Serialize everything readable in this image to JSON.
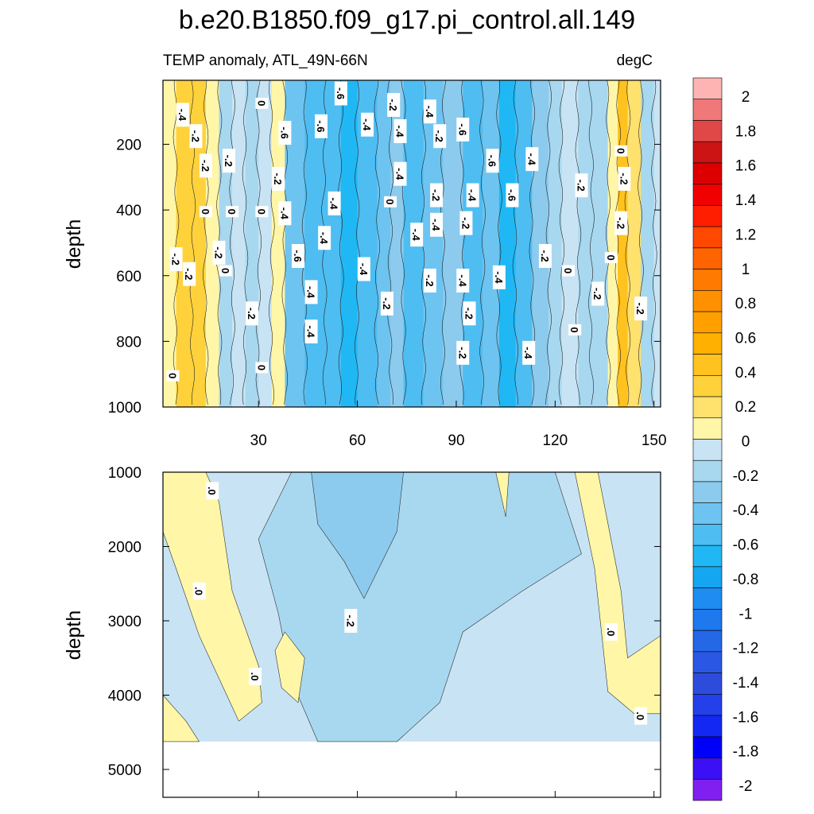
{
  "chart_data": [
    {
      "type": "heatmap",
      "variant": "filled-contour",
      "panel": "upper",
      "title": "b.e20.B1850.f09_g17.pi_control.all.149",
      "subtitle_left": "TEMP anomaly, ATL_49N-66N",
      "subtitle_right": "degC",
      "xlabel": "",
      "ylabel": "depth",
      "xlim": [
        1,
        152
      ],
      "ylim": [
        1000,
        5
      ],
      "xticks": [
        30,
        60,
        90,
        120,
        150
      ],
      "yticks": [
        200,
        400,
        600,
        800,
        1000
      ],
      "columns": [
        {
          "x": 1,
          "v": 0.0
        },
        {
          "x": 5,
          "v": 0.22
        },
        {
          "x": 10,
          "v": 0.28
        },
        {
          "x": 14,
          "v": 0.05
        },
        {
          "x": 18,
          "v": -0.15
        },
        {
          "x": 22,
          "v": -0.1
        },
        {
          "x": 26,
          "v": -0.2
        },
        {
          "x": 30,
          "v": -0.05
        },
        {
          "x": 34,
          "v": 0.05
        },
        {
          "x": 38,
          "v": -0.4
        },
        {
          "x": 44,
          "v": -0.5
        },
        {
          "x": 50,
          "v": -0.45
        },
        {
          "x": 55,
          "v": -0.55
        },
        {
          "x": 60,
          "v": -0.45
        },
        {
          "x": 66,
          "v": -0.38
        },
        {
          "x": 70,
          "v": -0.25
        },
        {
          "x": 74,
          "v": -0.45
        },
        {
          "x": 80,
          "v": -0.4
        },
        {
          "x": 86,
          "v": -0.3
        },
        {
          "x": 92,
          "v": -0.5
        },
        {
          "x": 98,
          "v": -0.4
        },
        {
          "x": 103,
          "v": -0.55
        },
        {
          "x": 108,
          "v": -0.45
        },
        {
          "x": 113,
          "v": -0.3
        },
        {
          "x": 118,
          "v": -0.2
        },
        {
          "x": 122,
          "v": -0.05
        },
        {
          "x": 127,
          "v": -0.15
        },
        {
          "x": 131,
          "v": -0.2
        },
        {
          "x": 136,
          "v": 0.05
        },
        {
          "x": 139,
          "v": 0.3
        },
        {
          "x": 142,
          "v": 0.15
        },
        {
          "x": 146,
          "v": -0.15
        },
        {
          "x": 150,
          "v": -0.1
        },
        {
          "x": 152,
          "v": 0.05
        }
      ],
      "contour_labels": [
        {
          "x": 7,
          "depth": 110,
          "text": "-.4"
        },
        {
          "x": 31,
          "depth": 75,
          "text": "0"
        },
        {
          "x": 55,
          "depth": 45,
          "text": "-.6"
        },
        {
          "x": 71,
          "depth": 80,
          "text": "-.2"
        },
        {
          "x": 82,
          "depth": 100,
          "text": "-.4"
        },
        {
          "x": 11,
          "depth": 175,
          "text": "-.2"
        },
        {
          "x": 38,
          "depth": 165,
          "text": "-.6"
        },
        {
          "x": 49,
          "depth": 145,
          "text": "-.6"
        },
        {
          "x": 63,
          "depth": 140,
          "text": "-.4"
        },
        {
          "x": 73,
          "depth": 160,
          "text": "-.4"
        },
        {
          "x": 85,
          "depth": 175,
          "text": "-.2"
        },
        {
          "x": 92,
          "depth": 155,
          "text": "-.6"
        },
        {
          "x": 14,
          "depth": 265,
          "text": "-.2"
        },
        {
          "x": 21,
          "depth": 250,
          "text": "-.2"
        },
        {
          "x": 36,
          "depth": 305,
          "text": "-.2"
        },
        {
          "x": 73,
          "depth": 290,
          "text": "-.4"
        },
        {
          "x": 101,
          "depth": 250,
          "text": "-.6"
        },
        {
          "x": 113,
          "depth": 245,
          "text": "-.4"
        },
        {
          "x": 140,
          "depth": 220,
          "text": "0"
        },
        {
          "x": 84,
          "depth": 355,
          "text": "-.2"
        },
        {
          "x": 95,
          "depth": 355,
          "text": "-.4"
        },
        {
          "x": 107,
          "depth": 355,
          "text": "-.6"
        },
        {
          "x": 128,
          "depth": 325,
          "text": "-.2"
        },
        {
          "x": 141,
          "depth": 305,
          "text": "-.2"
        },
        {
          "x": 14,
          "depth": 405,
          "text": "0"
        },
        {
          "x": 22,
          "depth": 405,
          "text": "0"
        },
        {
          "x": 31,
          "depth": 405,
          "text": "0"
        },
        {
          "x": 38,
          "depth": 410,
          "text": "-.4"
        },
        {
          "x": 53,
          "depth": 380,
          "text": "-.4"
        },
        {
          "x": 70,
          "depth": 375,
          "text": "0"
        },
        {
          "x": 84,
          "depth": 445,
          "text": "-.4"
        },
        {
          "x": 93,
          "depth": 440,
          "text": "-.2"
        },
        {
          "x": 78,
          "depth": 475,
          "text": "-.4"
        },
        {
          "x": 140,
          "depth": 440,
          "text": "-.2"
        },
        {
          "x": 50,
          "depth": 485,
          "text": "-.4"
        },
        {
          "x": 18,
          "depth": 530,
          "text": "-.2"
        },
        {
          "x": 5,
          "depth": 550,
          "text": "-.2"
        },
        {
          "x": 42,
          "depth": 540,
          "text": "-.6"
        },
        {
          "x": 117,
          "depth": 540,
          "text": "-.2"
        },
        {
          "x": 137,
          "depth": 545,
          "text": "0"
        },
        {
          "x": 20,
          "depth": 585,
          "text": "0"
        },
        {
          "x": 9,
          "depth": 595,
          "text": "-.2"
        },
        {
          "x": 62,
          "depth": 580,
          "text": "-.4"
        },
        {
          "x": 103,
          "depth": 605,
          "text": "-.4"
        },
        {
          "x": 124,
          "depth": 585,
          "text": "0"
        },
        {
          "x": 82,
          "depth": 615,
          "text": "-.2"
        },
        {
          "x": 92,
          "depth": 615,
          "text": "-.4"
        },
        {
          "x": 46,
          "depth": 650,
          "text": "-.4"
        },
        {
          "x": 133,
          "depth": 655,
          "text": "-.2"
        },
        {
          "x": 69,
          "depth": 685,
          "text": "-.2"
        },
        {
          "x": 28,
          "depth": 715,
          "text": "-.2"
        },
        {
          "x": 94,
          "depth": 715,
          "text": "-.2"
        },
        {
          "x": 146,
          "depth": 700,
          "text": "-.2"
        },
        {
          "x": 46,
          "depth": 770,
          "text": "-.4"
        },
        {
          "x": 126,
          "depth": 765,
          "text": "0"
        },
        {
          "x": 92,
          "depth": 835,
          "text": "-.2"
        },
        {
          "x": 112,
          "depth": 835,
          "text": "-.4"
        },
        {
          "x": 4,
          "depth": 905,
          "text": "0"
        },
        {
          "x": 31,
          "depth": 880,
          "text": "0"
        }
      ]
    },
    {
      "type": "heatmap",
      "variant": "filled-contour",
      "panel": "lower",
      "xlabel": "",
      "ylabel": "depth",
      "xlim": [
        1,
        152
      ],
      "ylim": [
        5375,
        1000
      ],
      "yticks": [
        1000,
        2000,
        3000,
        4000,
        5000
      ],
      "xticks": [
        30,
        60,
        90,
        120,
        150
      ],
      "no_data_below_depth": 4625,
      "contour_labels": [
        {
          "x": 16,
          "depth": 1250,
          "text": ".0"
        },
        {
          "x": 12,
          "depth": 2600,
          "text": ".0"
        },
        {
          "x": 58,
          "depth": 3000,
          "text": "-.2"
        },
        {
          "x": 29,
          "depth": 3750,
          "text": ".0"
        },
        {
          "x": 137,
          "depth": 3150,
          "text": ".0"
        },
        {
          "x": 146,
          "depth": 4280,
          "text": ".0"
        }
      ]
    }
  ],
  "colorbar": {
    "labels": [
      "2",
      "1.8",
      "1.6",
      "1.4",
      "1.2",
      "1",
      "0.8",
      "0.6",
      "0.4",
      "0.2",
      "0",
      "-0.2",
      "-0.4",
      "-0.6",
      "-0.8",
      "-1",
      "-1.2",
      "-1.4",
      "-1.6",
      "-1.8",
      "-2"
    ],
    "colors": [
      "#ffb4b4",
      "#f07878",
      "#e04848",
      "#cc1414",
      "#dc0000",
      "#f00000",
      "#ff1e00",
      "#ff4800",
      "#ff6400",
      "#ff7a00",
      "#ff9000",
      "#ffa000",
      "#ffb000",
      "#ffc21e",
      "#ffd23c",
      "#ffe16e",
      "#fff6a8",
      "#c8e4f4",
      "#a8d8f0",
      "#8ccbee",
      "#6ec4f0",
      "#4ebdf2",
      "#20b8f4",
      "#14a6f0",
      "#1e8cf0",
      "#1e78ee",
      "#2468e8",
      "#2a58e4",
      "#2e4cdc",
      "#2440ea",
      "#1428f4",
      "#0000f8",
      "#3c10f4",
      "#8020f0"
    ]
  }
}
